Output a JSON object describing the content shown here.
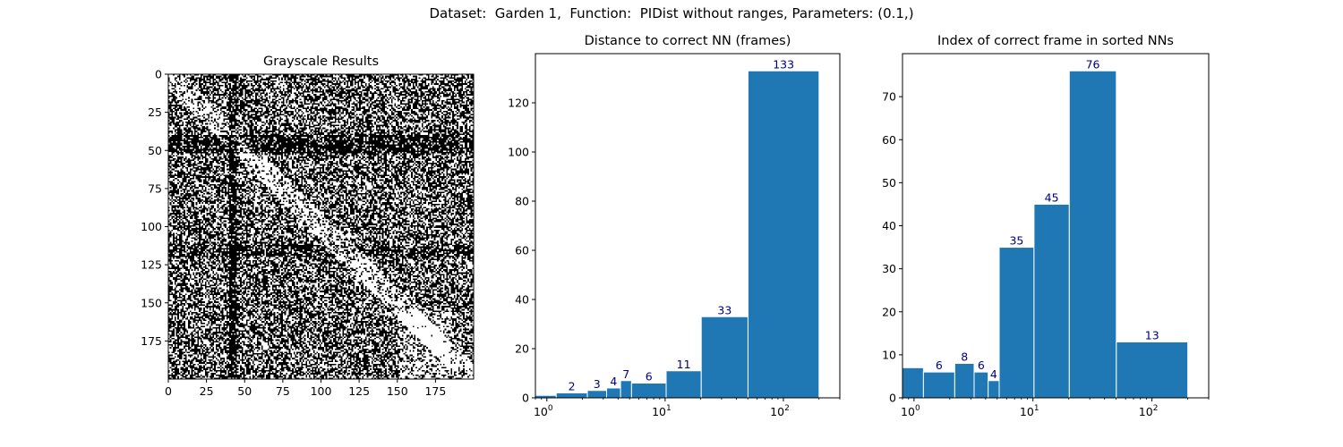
{
  "suptitle": "Dataset:  Garden 1,  Function:  PIDist without ranges, Parameters: (0.1,)",
  "chart_data": [
    {
      "type": "heatmap",
      "title": "Grayscale Results",
      "colormap": "gray",
      "size": [
        200,
        200
      ],
      "xticks": [
        0,
        25,
        50,
        75,
        100,
        125,
        150,
        175
      ],
      "yticks": [
        0,
        25,
        50,
        75,
        100,
        125,
        150,
        175
      ],
      "xlim": [
        0,
        200
      ],
      "ylim": [
        200,
        0
      ]
    },
    {
      "type": "bar",
      "title": "Distance to correct NN (frames)",
      "xscale": "log",
      "xlim": [
        0.8,
        300
      ],
      "ylim": [
        0,
        140
      ],
      "yticks": [
        0,
        20,
        40,
        60,
        80,
        100,
        120
      ],
      "xticks": [
        "10^0",
        "10^1",
        "10^2"
      ],
      "color": "#1f77b4",
      "label_color": "#000080",
      "bars": [
        {
          "left": 0.8,
          "right": 1.2,
          "value": 1,
          "label": ""
        },
        {
          "left": 1.2,
          "right": 2.2,
          "value": 2,
          "label": "2"
        },
        {
          "left": 2.2,
          "right": 3.2,
          "value": 3,
          "label": "3"
        },
        {
          "left": 3.2,
          "right": 4.2,
          "value": 4,
          "label": "4"
        },
        {
          "left": 4.2,
          "right": 5.2,
          "value": 7,
          "label": "7"
        },
        {
          "left": 5.2,
          "right": 10.2,
          "value": 6,
          "label": "6"
        },
        {
          "left": 10.2,
          "right": 20.2,
          "value": 11,
          "label": "11"
        },
        {
          "left": 20.2,
          "right": 50.2,
          "value": 33,
          "label": "33"
        },
        {
          "left": 50.2,
          "right": 200.2,
          "value": 133,
          "label": "133"
        }
      ]
    },
    {
      "type": "bar",
      "title": "Index of correct frame in sorted NNs",
      "xscale": "log",
      "xlim": [
        0.8,
        300
      ],
      "ylim": [
        0,
        80
      ],
      "yticks": [
        0,
        10,
        20,
        30,
        40,
        50,
        60,
        70
      ],
      "xticks": [
        "10^0",
        "10^1",
        "10^2"
      ],
      "color": "#1f77b4",
      "label_color": "#000080",
      "bars": [
        {
          "left": 0.8,
          "right": 1.2,
          "value": 7,
          "label": ""
        },
        {
          "left": 1.2,
          "right": 2.2,
          "value": 6,
          "label": "6"
        },
        {
          "left": 2.2,
          "right": 3.2,
          "value": 8,
          "label": "8"
        },
        {
          "left": 3.2,
          "right": 4.2,
          "value": 6,
          "label": "6"
        },
        {
          "left": 4.2,
          "right": 5.2,
          "value": 4,
          "label": "4"
        },
        {
          "left": 5.2,
          "right": 10.2,
          "value": 35,
          "label": "35"
        },
        {
          "left": 10.2,
          "right": 20.2,
          "value": 45,
          "label": "45"
        },
        {
          "left": 20.2,
          "right": 50.2,
          "value": 76,
          "label": "76"
        },
        {
          "left": 50.2,
          "right": 200.2,
          "value": 13,
          "label": "13"
        }
      ]
    }
  ]
}
